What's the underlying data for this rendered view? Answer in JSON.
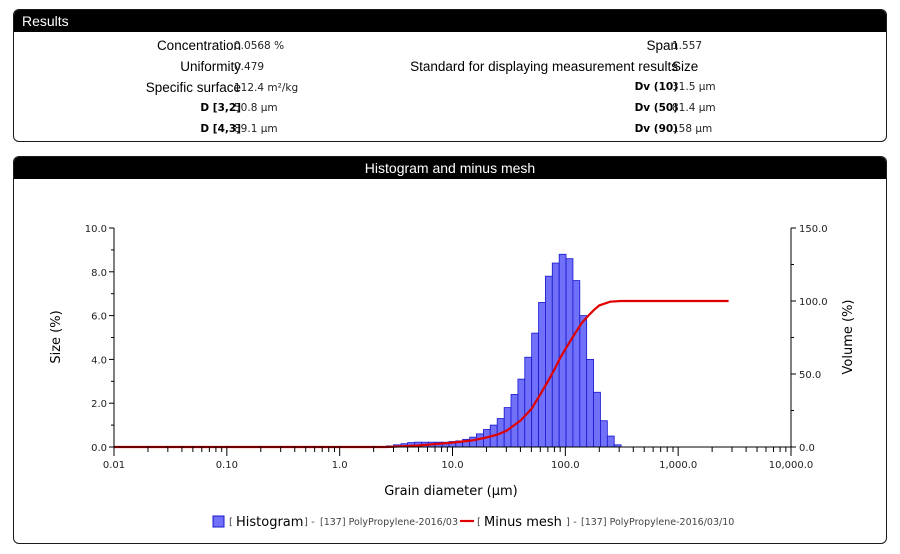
{
  "results": {
    "header": "Results",
    "concentration": {
      "label": "Concentration",
      "value": "0.0568 %"
    },
    "uniformity": {
      "label": "Uniformity",
      "value": "0.479"
    },
    "specific_surface": {
      "label": "Specific surface",
      "value": "112.4 m²/kg"
    },
    "d32": {
      "label": "D [3,2]",
      "value": "50.8 μm"
    },
    "d43": {
      "label": "D [4,3]",
      "value": "89.1 μm"
    },
    "span": {
      "label": "Span",
      "value": "1.557"
    },
    "standard": {
      "label": "Standard for displaying measurement results",
      "value": "Size"
    },
    "dv10": {
      "label": "Dv (10)",
      "value": "31.5 μm"
    },
    "dv50": {
      "label": "Dv (50)",
      "value": "81.4 μm"
    },
    "dv90": {
      "label": "Dv (90)",
      "value": "158 μm"
    }
  },
  "chart_header": "Histogram and minus mesh",
  "chart_data": {
    "type": "bar",
    "title": "Histogram and minus mesh",
    "xlabel": "Grain diameter (μm)",
    "ylabel": "Size (%)",
    "y2label": "Volume (%)",
    "x_scale": "log",
    "xlim": [
      0.01,
      10000
    ],
    "ylim": [
      0,
      10
    ],
    "y2lim": [
      0,
      150
    ],
    "x_ticks": [
      "0.01",
      "0.10",
      "1.0",
      "10.0",
      "100.0",
      "1,000.0",
      "10,000.0"
    ],
    "y_ticks": [
      "0.0",
      "2.0",
      "4.0",
      "6.0",
      "8.0",
      "10.0"
    ],
    "y2_ticks": [
      "0.0",
      "50.0",
      "100.0",
      "150.0"
    ],
    "grid": false,
    "legend_position": "bottom",
    "colors": {
      "histogram_fill": "#7070f8",
      "histogram_edge": "#1818d0",
      "minus_mesh": "#e00000",
      "axis": "#000000"
    },
    "series": [
      {
        "name": "Histogram",
        "legend_text": "[137] PolyPropylene-2016/03",
        "kind": "bar",
        "bin_edges": [
          2.6,
          3.0,
          3.5,
          4.0,
          4.6,
          5.3,
          6.1,
          7.0,
          8.1,
          9.3,
          10.7,
          12.3,
          14.2,
          16.3,
          18.8,
          21.6,
          24.9,
          28.7,
          33.0,
          38.0,
          43.7,
          50.3,
          57.9,
          66.6,
          76.6,
          88.2,
          101.5,
          116.8,
          134.4,
          154.6,
          177.9,
          204.8,
          235.6,
          271.2,
          312.1
        ],
        "values": [
          0.05,
          0.1,
          0.15,
          0.2,
          0.22,
          0.22,
          0.22,
          0.22,
          0.22,
          0.25,
          0.28,
          0.35,
          0.45,
          0.6,
          0.8,
          1.0,
          1.3,
          1.8,
          2.4,
          3.1,
          4.1,
          5.2,
          6.6,
          7.8,
          8.4,
          8.8,
          8.6,
          7.6,
          6.0,
          4.0,
          2.5,
          1.2,
          0.5,
          0.1
        ]
      },
      {
        "name": "Minus mesh",
        "legend_text": "[137] PolyPropylene-2016/03/10",
        "kind": "line",
        "x": [
          0.01,
          1.0,
          2.6,
          5,
          10,
          15,
          20,
          25,
          30,
          40,
          50,
          60,
          70,
          80,
          90,
          100,
          120,
          140,
          160,
          180,
          200,
          250,
          312,
          500,
          1000,
          2800
        ],
        "y": [
          0,
          0,
          0,
          1.0,
          3.0,
          4.5,
          6.5,
          8.5,
          11,
          18,
          26,
          36,
          45,
          53,
          61,
          67,
          77,
          85,
          90,
          94,
          97,
          99.5,
          100,
          100,
          100,
          100
        ]
      }
    ]
  }
}
